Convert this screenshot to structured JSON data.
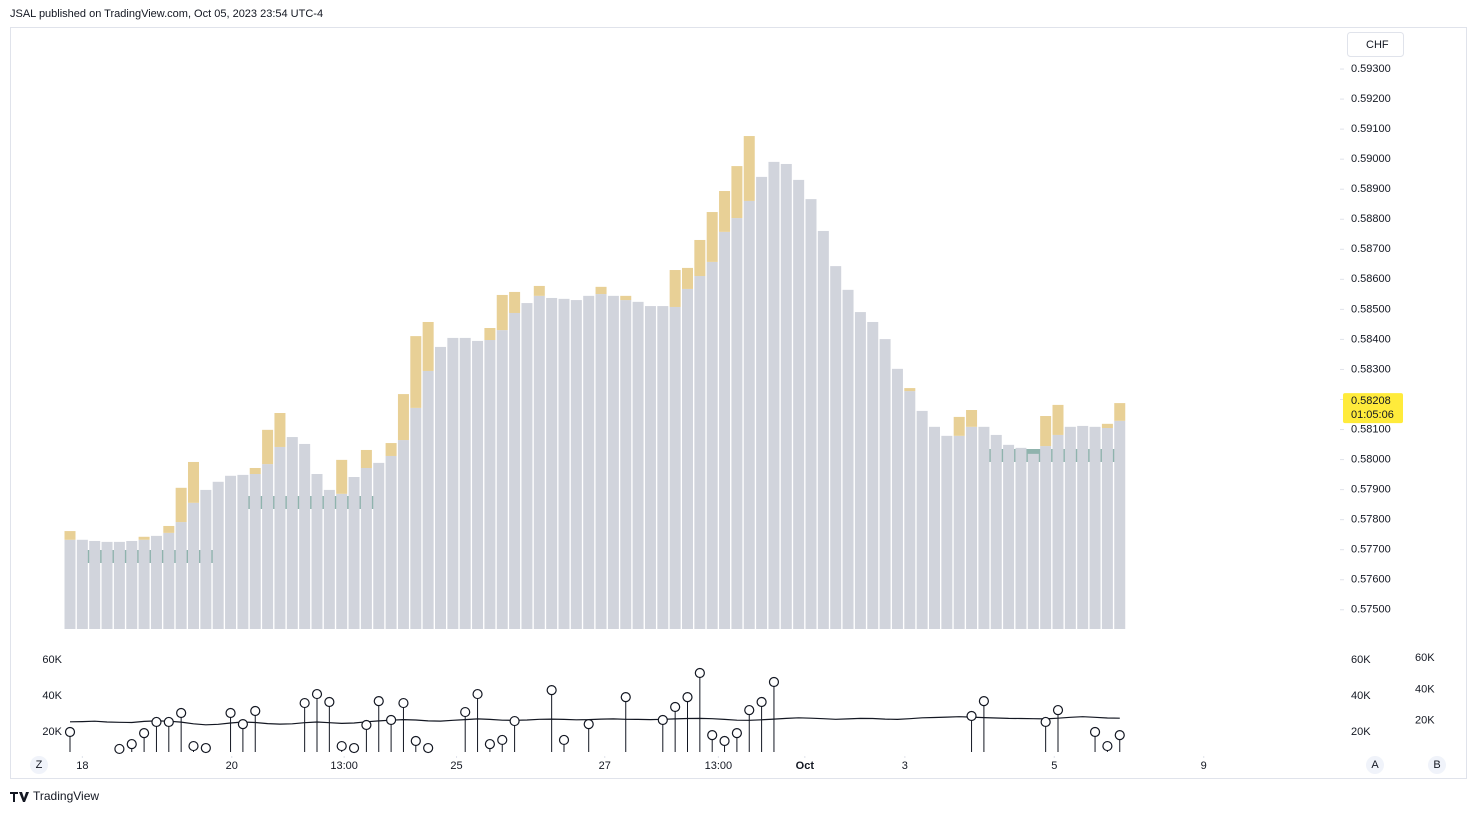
{
  "header": "JSAL published on TradingView.com, Oct 05, 2023 23:54 UTC-4",
  "currency": "CHF",
  "buttons": [
    "Z",
    "A",
    "B"
  ],
  "brand": "TradingView",
  "chart_data": {
    "type": "bar",
    "ylim": [
      0.57436,
      0.5943
    ],
    "yticks": [
      {
        "value": 0.593,
        "label": "0.59300"
      },
      {
        "value": 0.592,
        "label": "0.59200"
      },
      {
        "value": 0.591,
        "label": "0.59100"
      },
      {
        "value": 0.59,
        "label": "0.59000"
      },
      {
        "value": 0.589,
        "label": "0.58900"
      },
      {
        "value": 0.588,
        "label": "0.58800"
      },
      {
        "value": 0.587,
        "label": "0.58700"
      },
      {
        "value": 0.586,
        "label": "0.58600"
      },
      {
        "value": 0.585,
        "label": "0.58500"
      },
      {
        "value": 0.584,
        "label": "0.58400"
      },
      {
        "value": 0.583,
        "label": "0.58300"
      },
      {
        "value": 0.582,
        "label": "0.58200"
      },
      {
        "value": 0.581,
        "label": "0.58100"
      },
      {
        "value": 0.58,
        "label": "0.58000"
      },
      {
        "value": 0.579,
        "label": "0.57900"
      },
      {
        "value": 0.578,
        "label": "0.57800"
      },
      {
        "value": 0.577,
        "label": "0.57700"
      },
      {
        "value": 0.576,
        "label": "0.57600"
      },
      {
        "value": 0.575,
        "label": "0.57500"
      }
    ],
    "xlim": [
      -1,
      98
    ],
    "xticks": [
      {
        "value": 1,
        "label": "18"
      },
      {
        "value": 13.1,
        "label": "20"
      },
      {
        "value": 22.2,
        "label": "13:00"
      },
      {
        "value": 31.3,
        "label": "25"
      },
      {
        "value": 43.3,
        "label": "27"
      },
      {
        "value": 52.5,
        "label": "13:00"
      },
      {
        "value": 59.5,
        "label": "Oct"
      },
      {
        "value": 67.6,
        "label": "3"
      },
      {
        "value": 79.7,
        "label": "5"
      },
      {
        "value": 91.8,
        "label": "9"
      }
    ],
    "series": [
      {
        "color": "#d1d4dc",
        "values": [
          0.57733,
          0.57733,
          0.57729,
          0.57726,
          0.57726,
          0.57729,
          0.57733,
          0.57746,
          0.57756,
          0.57792,
          0.57856,
          0.57899,
          0.57926,
          0.57946,
          0.57949,
          0.57952,
          0.57985,
          0.58042,
          0.58075,
          0.58052,
          0.57952,
          0.57899,
          0.57886,
          0.57942,
          0.57972,
          0.57989,
          0.58012,
          0.58065,
          0.58172,
          0.58295,
          0.58375,
          0.58405,
          0.58405,
          0.58395,
          0.58398,
          0.58431,
          0.58488,
          0.58521,
          0.58545,
          0.58538,
          0.58535,
          0.58531,
          0.58545,
          0.58551,
          0.58545,
          0.58531,
          0.58525,
          0.58511,
          0.58511,
          0.58508,
          0.58568,
          0.58611,
          0.58658,
          0.58758,
          0.58804,
          0.58861,
          0.58941,
          0.58991,
          0.58984,
          0.58931,
          0.58867,
          0.58761,
          0.58644,
          0.58565,
          0.58491,
          0.58458,
          0.58401,
          0.58302,
          0.58228,
          0.58162,
          0.58109,
          0.58079,
          0.58079,
          0.58109,
          0.58109,
          0.58082,
          0.58049,
          0.58039,
          0.58019,
          0.58045,
          0.58082,
          0.58109,
          0.58112,
          0.58109,
          0.58105,
          0.58129
        ]
      },
      {
        "color": "#e8d096",
        "values": [
          0.57762,
          null,
          null,
          null,
          null,
          null,
          0.57743,
          null,
          0.57779,
          0.57906,
          0.57992,
          null,
          null,
          null,
          null,
          0.57972,
          0.58099,
          0.58155,
          null,
          null,
          null,
          null,
          0.57999,
          null,
          0.58032,
          null,
          0.58055,
          0.58218,
          0.58411,
          0.58458,
          null,
          null,
          null,
          null,
          0.58438,
          0.58548,
          0.58558,
          null,
          0.58578,
          null,
          null,
          null,
          null,
          0.58575,
          null,
          0.58545,
          null,
          null,
          null,
          0.58631,
          0.58638,
          0.58731,
          0.58824,
          0.58894,
          0.58977,
          0.59077,
          null,
          null,
          null,
          null,
          null,
          null,
          null,
          null,
          null,
          null,
          null,
          null,
          0.58238,
          null,
          null,
          null,
          0.58142,
          0.58165,
          null,
          null,
          null,
          null,
          null,
          0.58145,
          0.58182,
          null,
          null,
          null,
          0.58119,
          0.58188
        ]
      }
    ],
    "last_price": {
      "value": 0.58208,
      "label": "0.58208"
    },
    "countdown": "01:05:06",
    "volume": {
      "ylim": [
        8900,
        65600
      ],
      "yticks": [
        {
          "value": 60000,
          "label": "60K"
        },
        {
          "value": 40000,
          "label": "40K"
        },
        {
          "value": 20000,
          "label": "20K"
        }
      ],
      "y2lim": [
        0,
        65200
      ],
      "y2ticks": [
        {
          "value": 60000,
          "label": "60K"
        },
        {
          "value": 40000,
          "label": "40K"
        },
        {
          "value": 20000,
          "label": "20K"
        }
      ],
      "values": [
        20000,
        null,
        null,
        null,
        10600,
        13300,
        19400,
        25600,
        25600,
        30600,
        12200,
        11100,
        null,
        30600,
        24400,
        31700,
        null,
        null,
        null,
        36100,
        41100,
        36700,
        12200,
        11100,
        23900,
        37200,
        26700,
        36100,
        15000,
        11100,
        null,
        null,
        31100,
        41100,
        13300,
        15600,
        26100,
        null,
        null,
        43300,
        15600,
        null,
        24400,
        null,
        null,
        39400,
        null,
        null,
        26700,
        33900,
        39400,
        52800,
        18300,
        15000,
        19400,
        32200,
        36700,
        47800,
        null,
        null,
        null,
        null,
        null,
        null,
        null,
        null,
        null,
        null,
        null,
        null,
        null,
        null,
        null,
        28900,
        37200,
        null,
        null,
        null,
        null,
        25600,
        32200,
        null,
        null,
        20000,
        12200,
        18300
      ],
      "ma": [
        25700,
        25800,
        26000,
        25600,
        25400,
        25300,
        25900,
        26200,
        26000,
        25500,
        24600,
        24000,
        24300,
        25000,
        25600,
        25300,
        24700,
        24400,
        24600,
        25200,
        25600,
        25200,
        24800,
        25000,
        25700,
        26200,
        26600,
        26900,
        26700,
        26200,
        26100,
        26500,
        26900,
        27300,
        27000,
        26600,
        26500,
        26700,
        27100,
        27200,
        27000,
        26800,
        26900,
        27200,
        27300,
        27100,
        27000,
        26900,
        27100,
        27300,
        27500,
        27600,
        27400,
        27000,
        26600,
        26500,
        26800,
        27200,
        27600,
        27900,
        27700,
        27400,
        27100,
        27300,
        27600,
        27500,
        27200,
        27000,
        27400,
        27900,
        28100,
        28300,
        28500,
        28300,
        28000,
        27800,
        27600,
        27500,
        27400,
        27300,
        27700,
        28200,
        28500,
        28200,
        27800,
        27700
      ]
    }
  }
}
